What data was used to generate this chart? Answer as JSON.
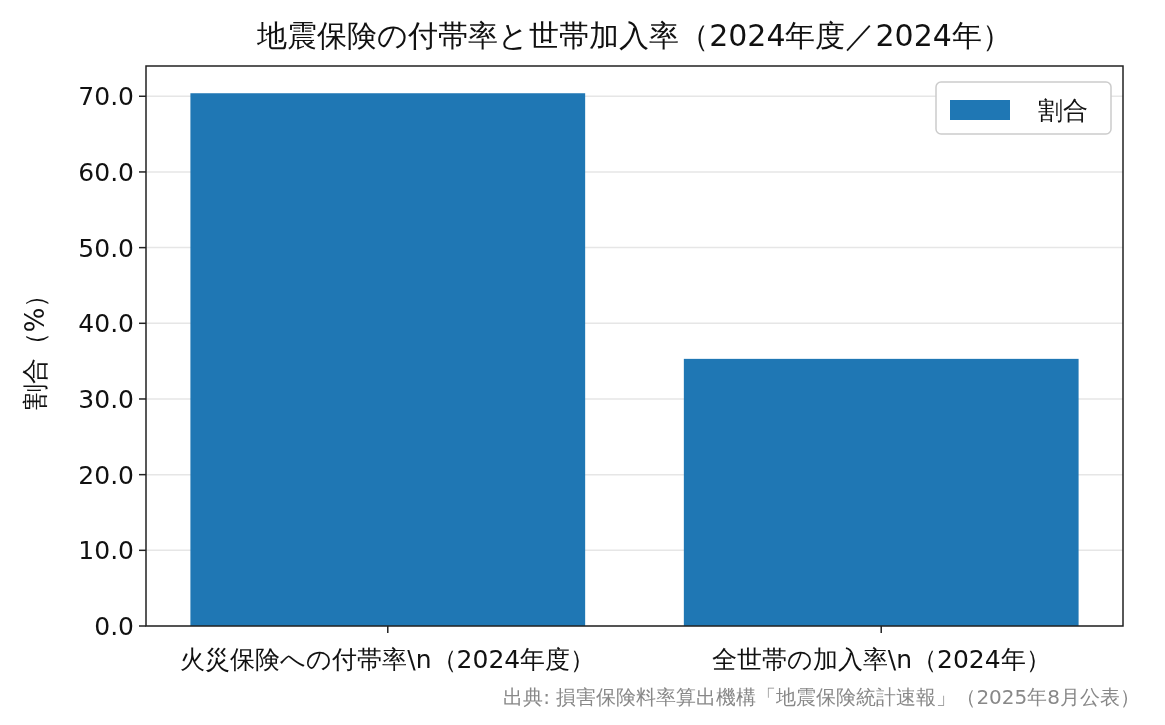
{
  "chart_data": {
    "type": "bar",
    "title": "地震保険の付帯率と世帯加入率（2024年度／2024年）",
    "ylabel": "割合（%）",
    "categories": [
      "火災保険への付帯率\\n（2024年度）",
      "全世帯の加入率\\n（2024年）"
    ],
    "series": [
      {
        "name": "割合",
        "color": "#1f77b4",
        "values": [
          70.4,
          35.3
        ]
      }
    ],
    "ylim": [
      0,
      74
    ],
    "yticks": [
      {
        "value": 0,
        "label": "0.0"
      },
      {
        "value": 10,
        "label": "10.0"
      },
      {
        "value": 20,
        "label": "20.0"
      },
      {
        "value": 30,
        "label": "30.0"
      },
      {
        "value": 40,
        "label": "40.0"
      },
      {
        "value": 50,
        "label": "50.0"
      },
      {
        "value": 60,
        "label": "60.0"
      },
      {
        "value": 70,
        "label": "70.0"
      }
    ],
    "grid": "y",
    "legend": "top right",
    "annotations": [
      "出典: 損害保険料率算出機構「地震保険統計速報」（2025年8月公表）"
    ]
  }
}
